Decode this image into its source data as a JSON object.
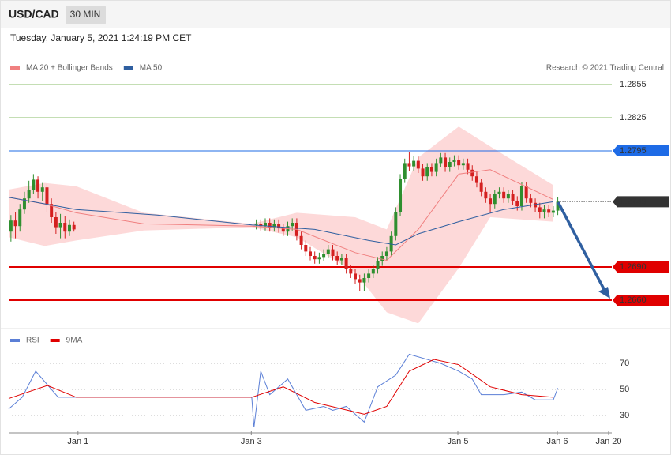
{
  "header": {
    "symbol": "USD/CAD",
    "interval": "30 MIN",
    "timestamp": "Tuesday, January 5, 2021 1:24:19 PM CET"
  },
  "chart_data": [
    {
      "type": "candlestick",
      "credit": "Research © 2021 Trading Central",
      "up_color": "#2f8f2f",
      "down_color": "#d42020",
      "xlim": [
        0,
        134
      ],
      "ylim": [
        1.2635,
        1.2865
      ],
      "x": [
        0.5,
        1.5,
        2.5,
        3.5,
        4.5,
        5.5,
        6.5,
        7.5,
        8.5,
        9.5,
        10.5,
        11.5,
        12.5,
        13.5,
        14.5,
        55,
        56,
        57,
        58,
        59,
        60,
        61,
        62,
        63,
        64,
        65,
        66,
        67,
        68,
        69,
        70,
        71,
        72,
        73,
        74,
        75,
        76,
        77,
        78,
        79,
        80,
        81,
        82,
        83,
        84,
        85,
        86,
        87,
        88,
        89,
        90,
        91,
        92,
        93,
        94,
        95,
        96,
        97,
        98,
        99,
        100,
        101,
        102,
        103,
        104,
        105,
        106,
        107,
        108,
        109,
        110,
        111,
        112,
        113,
        114,
        115,
        116,
        117,
        118,
        119,
        120,
        121,
        122
      ],
      "open": [
        1.2722,
        1.2732,
        1.2727,
        1.2742,
        1.2752,
        1.276,
        1.2769,
        1.2758,
        1.2762,
        1.2747,
        1.2735,
        1.2726,
        1.273,
        1.2722,
        1.2728,
        1.2728,
        1.2729,
        1.2727,
        1.273,
        1.2726,
        1.2729,
        1.2725,
        1.2722,
        1.2727,
        1.273,
        1.2718,
        1.271,
        1.2704,
        1.27,
        1.2697,
        1.2699,
        1.2702,
        1.2706,
        1.27,
        1.2696,
        1.2698,
        1.2688,
        1.2684,
        1.2679,
        1.2676,
        1.268,
        1.2684,
        1.2688,
        1.2695,
        1.27,
        1.2704,
        1.2718,
        1.274,
        1.277,
        1.2784,
        1.2781,
        1.2786,
        1.2779,
        1.2772,
        1.278,
        1.2776,
        1.2784,
        1.2789,
        1.278,
        1.2785,
        1.2787,
        1.2782,
        1.2784,
        1.2778,
        1.2772,
        1.2766,
        1.2758,
        1.2752,
        1.2747,
        1.2756,
        1.2758,
        1.2752,
        1.2756,
        1.275,
        1.2745,
        1.2763,
        1.2752,
        1.2748,
        1.2744,
        1.274,
        1.2742,
        1.2739,
        1.2741
      ],
      "high": [
        1.2737,
        1.274,
        1.2747,
        1.2758,
        1.2768,
        1.2774,
        1.2772,
        1.2766,
        1.2765,
        1.2752,
        1.274,
        1.2738,
        1.2736,
        1.2733,
        1.2731,
        1.2733,
        1.2733,
        1.2734,
        1.2734,
        1.2733,
        1.2733,
        1.2729,
        1.2731,
        1.2734,
        1.2734,
        1.2722,
        1.2714,
        1.2708,
        1.2704,
        1.2703,
        1.2706,
        1.271,
        1.271,
        1.2704,
        1.2702,
        1.2702,
        1.2692,
        1.2688,
        1.2683,
        1.2684,
        1.2688,
        1.2692,
        1.2699,
        1.2704,
        1.2708,
        1.2722,
        1.2744,
        1.2774,
        1.2788,
        1.2794,
        1.279,
        1.279,
        1.2783,
        1.2784,
        1.2784,
        1.2788,
        1.2793,
        1.2793,
        1.2789,
        1.2791,
        1.2791,
        1.2788,
        1.2788,
        1.2782,
        1.2776,
        1.277,
        1.2762,
        1.2756,
        1.276,
        1.2762,
        1.2762,
        1.276,
        1.276,
        1.2754,
        1.2767,
        1.2767,
        1.2756,
        1.2752,
        1.2748,
        1.2746,
        1.2746,
        1.2745,
        1.2753
      ],
      "low": [
        1.2713,
        1.2716,
        1.2722,
        1.2738,
        1.2748,
        1.2756,
        1.2752,
        1.275,
        1.274,
        1.273,
        1.272,
        1.2716,
        1.2716,
        1.2718,
        1.2722,
        1.2724,
        1.2723,
        1.2723,
        1.2722,
        1.2722,
        1.2721,
        1.2718,
        1.2718,
        1.2723,
        1.2714,
        1.2706,
        1.27,
        1.2696,
        1.2693,
        1.2693,
        1.2695,
        1.2698,
        1.2696,
        1.2692,
        1.2692,
        1.2684,
        1.268,
        1.2675,
        1.2668,
        1.2668,
        1.2676,
        1.268,
        1.2684,
        1.2691,
        1.2696,
        1.27,
        1.2714,
        1.2736,
        1.2766,
        1.2777,
        1.2777,
        1.2775,
        1.2768,
        1.2768,
        1.2772,
        1.2772,
        1.278,
        1.2776,
        1.2776,
        1.2781,
        1.2778,
        1.2778,
        1.2774,
        1.2768,
        1.2762,
        1.2754,
        1.2748,
        1.2739,
        1.2743,
        1.2752,
        1.2748,
        1.2748,
        1.2746,
        1.2741,
        1.2741,
        1.2748,
        1.2744,
        1.274,
        1.2734,
        1.2734,
        1.2735,
        1.2735,
        1.2737
      ],
      "close": [
        1.2732,
        1.2727,
        1.2742,
        1.2752,
        1.276,
        1.2769,
        1.2758,
        1.2762,
        1.2747,
        1.2735,
        1.2726,
        1.273,
        1.2722,
        1.2728,
        1.2724,
        1.2729,
        1.2727,
        1.273,
        1.2726,
        1.2729,
        1.2725,
        1.2722,
        1.2727,
        1.273,
        1.2718,
        1.271,
        1.2704,
        1.27,
        1.2697,
        1.2699,
        1.2702,
        1.2706,
        1.27,
        1.2696,
        1.2698,
        1.2688,
        1.2684,
        1.2679,
        1.2676,
        1.268,
        1.2684,
        1.2688,
        1.2695,
        1.27,
        1.2704,
        1.2718,
        1.274,
        1.277,
        1.2784,
        1.2781,
        1.2786,
        1.2779,
        1.2772,
        1.278,
        1.2776,
        1.2784,
        1.2789,
        1.278,
        1.2785,
        1.2787,
        1.2782,
        1.2784,
        1.2778,
        1.2772,
        1.2766,
        1.2758,
        1.2752,
        1.2747,
        1.2756,
        1.2758,
        1.2752,
        1.2756,
        1.275,
        1.2745,
        1.2763,
        1.2752,
        1.2748,
        1.2744,
        1.274,
        1.2742,
        1.2739,
        1.2741,
        1.2749
      ],
      "overlays": [
        {
          "name": "MA 20 + Bollinger Bands",
          "color": "#f08080",
          "band_color": "#fdd9d9",
          "x": [
            0,
            8,
            15,
            30,
            54,
            64,
            77,
            84,
            91,
            100,
            107,
            121
          ],
          "values": [
            1.2753,
            1.2747,
            1.2739,
            1.2729,
            1.2727,
            1.2724,
            1.2703,
            1.2696,
            1.2724,
            1.2774,
            1.2778,
            1.2751
          ],
          "upper": [
            1.276,
            1.2766,
            1.2763,
            1.2739,
            1.2729,
            1.2739,
            1.2735,
            1.2724,
            1.2789,
            1.2817,
            1.2799,
            1.2764
          ],
          "lower": [
            1.2717,
            1.2709,
            1.2714,
            1.2723,
            1.2726,
            1.2717,
            1.2685,
            1.2649,
            1.2639,
            1.2689,
            1.2735,
            1.2731
          ]
        },
        {
          "name": "MA 50",
          "color": "#2f5fa0",
          "x": [
            0,
            15,
            33,
            54,
            68,
            80,
            86,
            91,
            100,
            110,
            121
          ],
          "values": [
            1.2753,
            1.2742,
            1.2737,
            1.2728,
            1.2724,
            1.2714,
            1.271,
            1.272,
            1.2731,
            1.2742,
            1.2749
          ]
        }
      ],
      "levels": [
        {
          "value": 1.2855,
          "color": "#5aa02c",
          "style": "thin"
        },
        {
          "value": 1.2825,
          "color": "#5aa02c",
          "style": "thin"
        },
        {
          "value": 1.2795,
          "color": "#1e6be6",
          "style": "solid"
        },
        {
          "value": 1.2749,
          "color": "#333333",
          "style": "dotted"
        },
        {
          "value": 1.269,
          "label": "1.2690",
          "color": "#e00000",
          "style": "bold"
        },
        {
          "value": 1.266,
          "label": "1.2660",
          "color": "#e00000",
          "style": "bold"
        }
      ]
    },
    {
      "type": "line",
      "xlim": [
        0,
        134
      ],
      "ylim": [
        18.5,
        79.1
      ],
      "yticks": [
        30,
        50,
        70
      ],
      "grid": true,
      "xticks": [
        {
          "value": 15.4,
          "label": "Jan 1"
        },
        {
          "value": 53.9,
          "label": "Jan 3"
        },
        {
          "value": 99.8,
          "label": "Jan 5"
        },
        {
          "value": 121.9,
          "label": "Jan 6"
        },
        {
          "value": 133.3,
          "label": "Jan 20"
        }
      ],
      "series": [
        {
          "name": "RSI",
          "color": "#5b7fd6",
          "x": [
            0,
            3,
            6,
            8,
            11,
            15,
            54,
            54.5,
            56,
            58,
            60,
            62,
            64,
            66,
            70,
            72,
            75,
            79,
            82,
            86,
            89,
            93,
            96,
            100,
            103,
            105,
            110,
            114,
            117,
            121,
            122
          ],
          "values": [
            35,
            44,
            64,
            56,
            44,
            44,
            44,
            21,
            64,
            46,
            52,
            58,
            46,
            34,
            37,
            34,
            37,
            25,
            52,
            61,
            77,
            73,
            70,
            64,
            58,
            46,
            46,
            48,
            42,
            42,
            51
          ]
        },
        {
          "name": "9MA",
          "color": "#e00000",
          "x": [
            0,
            8.6,
            15,
            54,
            61,
            68,
            79,
            84,
            89,
            94.5,
            100,
            107,
            114,
            121
          ],
          "values": [
            43,
            53,
            44,
            44,
            52,
            40,
            31,
            37,
            64,
            73,
            69,
            52,
            46,
            44
          ]
        }
      ]
    }
  ]
}
